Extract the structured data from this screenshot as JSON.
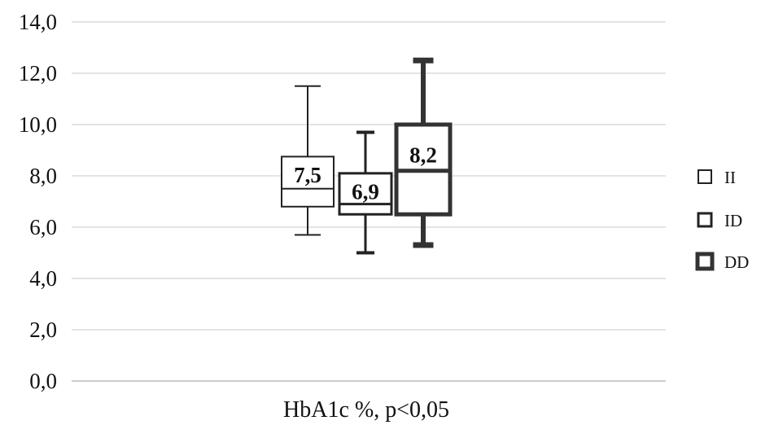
{
  "chart_data": {
    "type": "box",
    "xlabel": "HbA1c %, p<0,05",
    "ylabel": "",
    "ylim": [
      0,
      14
    ],
    "yticks": [
      "0,0",
      "2,0",
      "4,0",
      "6,0",
      "8,0",
      "10,0",
      "12,0",
      "14,0"
    ],
    "grid": true,
    "legend_position": "right",
    "series": [
      {
        "name": "II",
        "whisker_low": 5.7,
        "q1": 6.8,
        "median": 7.5,
        "q3": 8.75,
        "whisker_high": 11.5,
        "median_label": "7,5",
        "style": "thin"
      },
      {
        "name": "ID",
        "whisker_low": 5.0,
        "q1": 6.5,
        "median": 6.9,
        "q3": 8.1,
        "whisker_high": 9.7,
        "median_label": "6,9",
        "style": "medium"
      },
      {
        "name": "DD",
        "whisker_low": 5.3,
        "q1": 6.5,
        "median": 8.2,
        "q3": 10.0,
        "whisker_high": 12.5,
        "median_label": "8,2",
        "style": "thick"
      }
    ],
    "colors": {
      "stroke": "#222222",
      "dd_stroke": "#333333",
      "grid": "#c8c8c8",
      "axis": "#9a9a9a"
    }
  }
}
